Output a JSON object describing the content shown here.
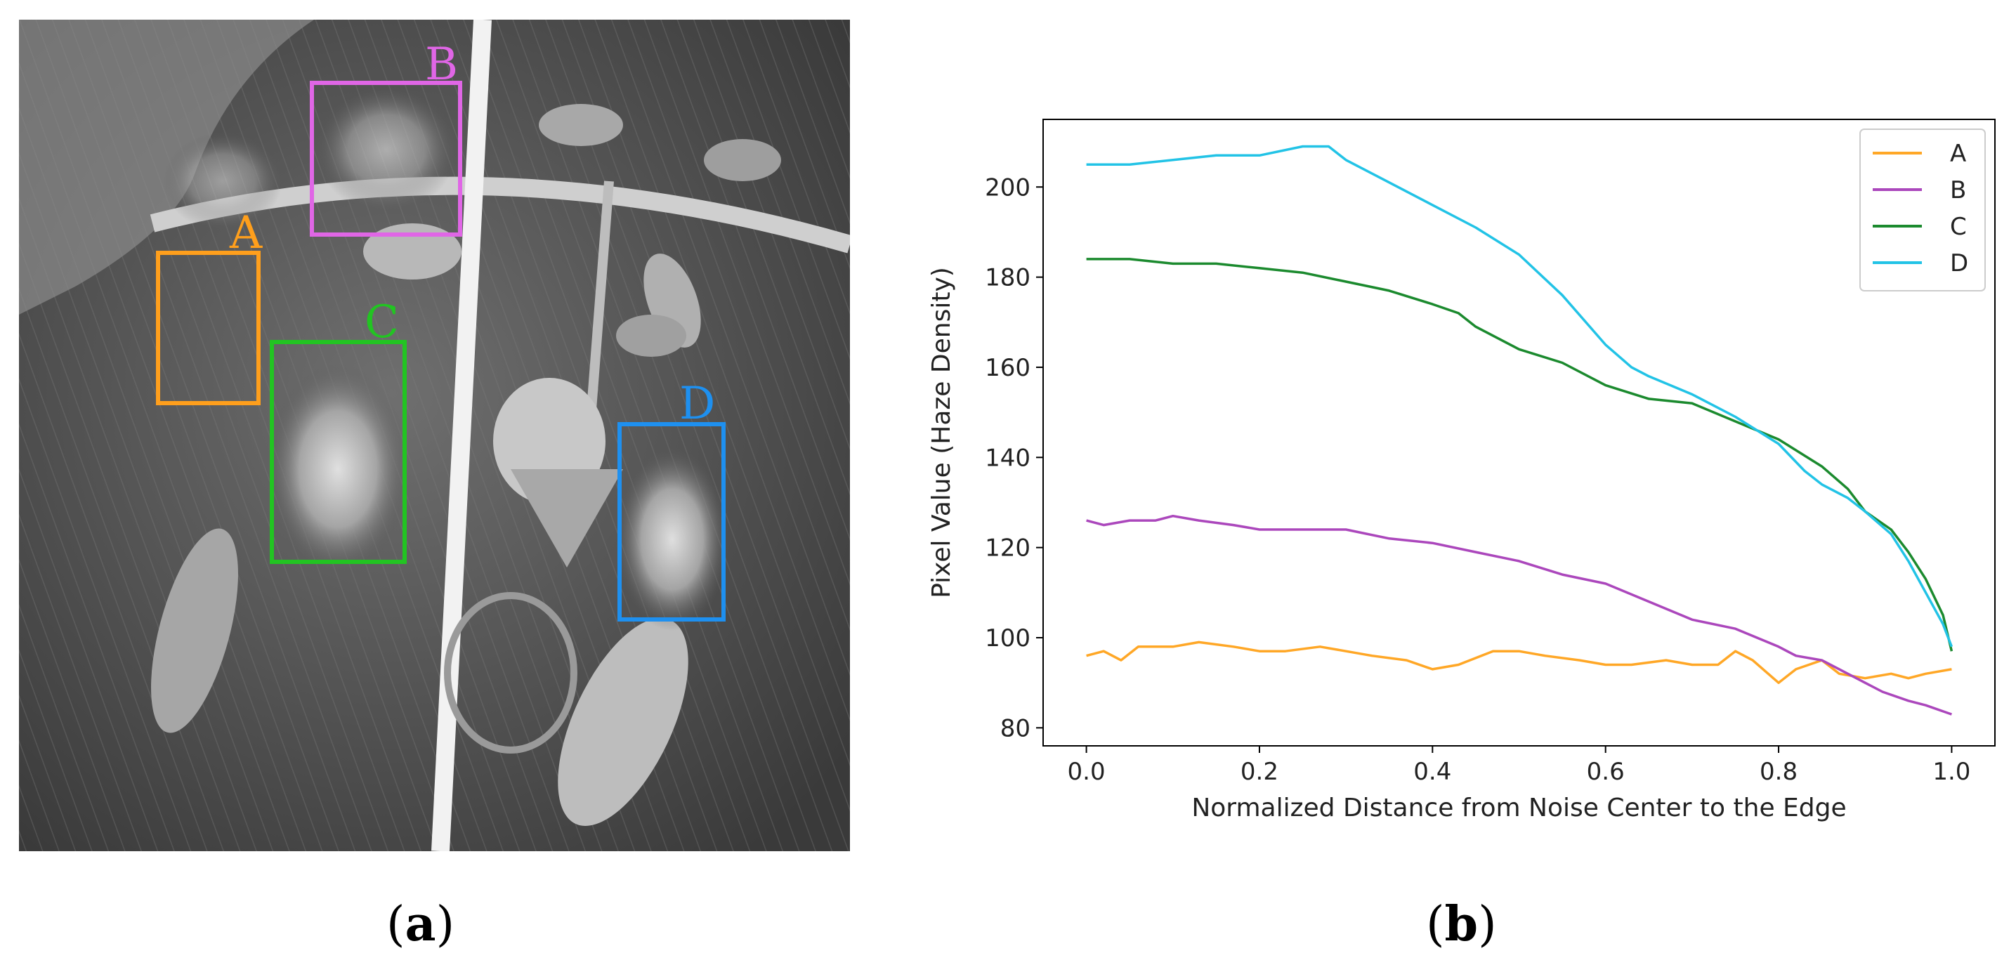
{
  "figure": {
    "panel_a": {
      "caption_letter": "a",
      "boxes": [
        {
          "label": "A",
          "color": "#FF9F1C"
        },
        {
          "label": "B",
          "color": "#E066E6"
        },
        {
          "label": "C",
          "color": "#22C422"
        },
        {
          "label": "D",
          "color": "#1E90F0"
        }
      ]
    },
    "panel_b": {
      "caption_letter": "b"
    }
  },
  "chart_data": {
    "type": "line",
    "title": "",
    "xlabel": "Normalized Distance from Noise Center to the Edge",
    "ylabel": "Pixel Value (Haze Density)",
    "xlim": [
      -0.05,
      1.05
    ],
    "ylim": [
      76,
      215
    ],
    "xticks": [
      0.0,
      0.2,
      0.4,
      0.6,
      0.8,
      1.0
    ],
    "xtick_labels": [
      "0.0",
      "0.2",
      "0.4",
      "0.6",
      "0.8",
      "1.0"
    ],
    "yticks": [
      80,
      100,
      120,
      140,
      160,
      180,
      200
    ],
    "ytick_labels": [
      "80",
      "100",
      "120",
      "140",
      "160",
      "180",
      "200"
    ],
    "grid": false,
    "legend_position": "top-right",
    "series": [
      {
        "name": "A",
        "color": "#FFA726",
        "x": [
          0.0,
          0.02,
          0.04,
          0.06,
          0.1,
          0.13,
          0.17,
          0.2,
          0.23,
          0.27,
          0.3,
          0.33,
          0.37,
          0.4,
          0.43,
          0.47,
          0.5,
          0.53,
          0.57,
          0.6,
          0.63,
          0.67,
          0.7,
          0.73,
          0.75,
          0.77,
          0.8,
          0.82,
          0.85,
          0.87,
          0.9,
          0.93,
          0.95,
          0.97,
          1.0
        ],
        "y": [
          96,
          97,
          95,
          98,
          98,
          99,
          98,
          97,
          97,
          98,
          97,
          96,
          95,
          93,
          94,
          97,
          97,
          96,
          95,
          94,
          94,
          95,
          94,
          94,
          97,
          95,
          90,
          93,
          95,
          92,
          91,
          92,
          91,
          92,
          93
        ]
      },
      {
        "name": "B",
        "color": "#AB47BC",
        "x": [
          0.0,
          0.02,
          0.05,
          0.08,
          0.1,
          0.13,
          0.17,
          0.2,
          0.25,
          0.3,
          0.35,
          0.4,
          0.45,
          0.5,
          0.55,
          0.6,
          0.65,
          0.7,
          0.75,
          0.8,
          0.82,
          0.85,
          0.88,
          0.9,
          0.92,
          0.95,
          0.97,
          1.0
        ],
        "y": [
          126,
          125,
          126,
          126,
          127,
          126,
          125,
          124,
          124,
          124,
          122,
          121,
          119,
          117,
          114,
          112,
          108,
          104,
          102,
          98,
          96,
          95,
          92,
          90,
          88,
          86,
          85,
          83
        ]
      },
      {
        "name": "C",
        "color": "#1B8A2E",
        "x": [
          0.0,
          0.05,
          0.1,
          0.15,
          0.2,
          0.25,
          0.3,
          0.35,
          0.4,
          0.43,
          0.45,
          0.5,
          0.55,
          0.6,
          0.65,
          0.7,
          0.75,
          0.8,
          0.85,
          0.88,
          0.9,
          0.93,
          0.95,
          0.97,
          0.99,
          1.0
        ],
        "y": [
          184,
          184,
          183,
          183,
          182,
          181,
          179,
          177,
          174,
          172,
          169,
          164,
          161,
          156,
          153,
          152,
          148,
          144,
          138,
          133,
          128,
          124,
          119,
          113,
          105,
          97
        ]
      },
      {
        "name": "D",
        "color": "#22C3E6",
        "x": [
          0.0,
          0.05,
          0.1,
          0.15,
          0.2,
          0.25,
          0.28,
          0.3,
          0.35,
          0.4,
          0.45,
          0.5,
          0.55,
          0.6,
          0.63,
          0.65,
          0.7,
          0.75,
          0.8,
          0.83,
          0.85,
          0.88,
          0.9,
          0.93,
          0.95,
          0.97,
          0.99,
          1.0
        ],
        "y": [
          205,
          205,
          206,
          207,
          207,
          209,
          209,
          206,
          201,
          196,
          191,
          185,
          176,
          165,
          160,
          158,
          154,
          149,
          143,
          137,
          134,
          131,
          128,
          123,
          117,
          110,
          103,
          98
        ]
      }
    ]
  }
}
